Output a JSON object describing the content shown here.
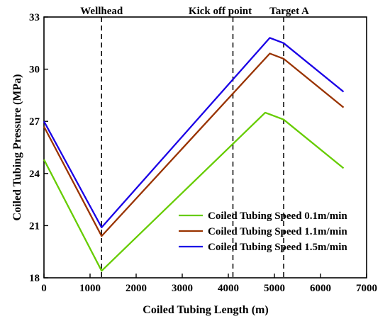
{
  "chart_data": {
    "type": "line",
    "title": "",
    "xlabel": "Coiled Tubing Length (m)",
    "ylabel": "Coiled Tubing Pressure (MPa)",
    "xlim": [
      0,
      7000
    ],
    "ylim": [
      18,
      33
    ],
    "xticks": [
      0,
      1000,
      2000,
      3000,
      4000,
      5000,
      6000,
      7000
    ],
    "yticks": [
      18,
      21,
      24,
      27,
      30,
      33
    ],
    "grid": false,
    "legend_position": "bottom-right",
    "annotations": [
      {
        "label": "Wellhead",
        "x": 1250
      },
      {
        "label": "Kick off point",
        "x": 4100
      },
      {
        "label": "Target A",
        "x": 5200
      }
    ],
    "series": [
      {
        "name": "Coiled Tubing Speed 0.1m/min",
        "color": "#66cc00",
        "points": [
          [
            0,
            24.8
          ],
          [
            1250,
            18.4
          ],
          [
            4800,
            27.5
          ],
          [
            5200,
            27.1
          ],
          [
            6500,
            24.3
          ]
        ]
      },
      {
        "name": "Coiled Tubing Speed 1.1m/min",
        "color": "#993300",
        "points": [
          [
            0,
            26.7
          ],
          [
            1250,
            20.4
          ],
          [
            4900,
            30.9
          ],
          [
            5200,
            30.6
          ],
          [
            6500,
            27.8
          ]
        ]
      },
      {
        "name": "Coiled Tubing Speed 1.5m/min",
        "color": "#1a00e6",
        "points": [
          [
            0,
            27.0
          ],
          [
            1250,
            20.9
          ],
          [
            4900,
            31.8
          ],
          [
            5200,
            31.5
          ],
          [
            6500,
            28.7
          ]
        ]
      }
    ]
  }
}
